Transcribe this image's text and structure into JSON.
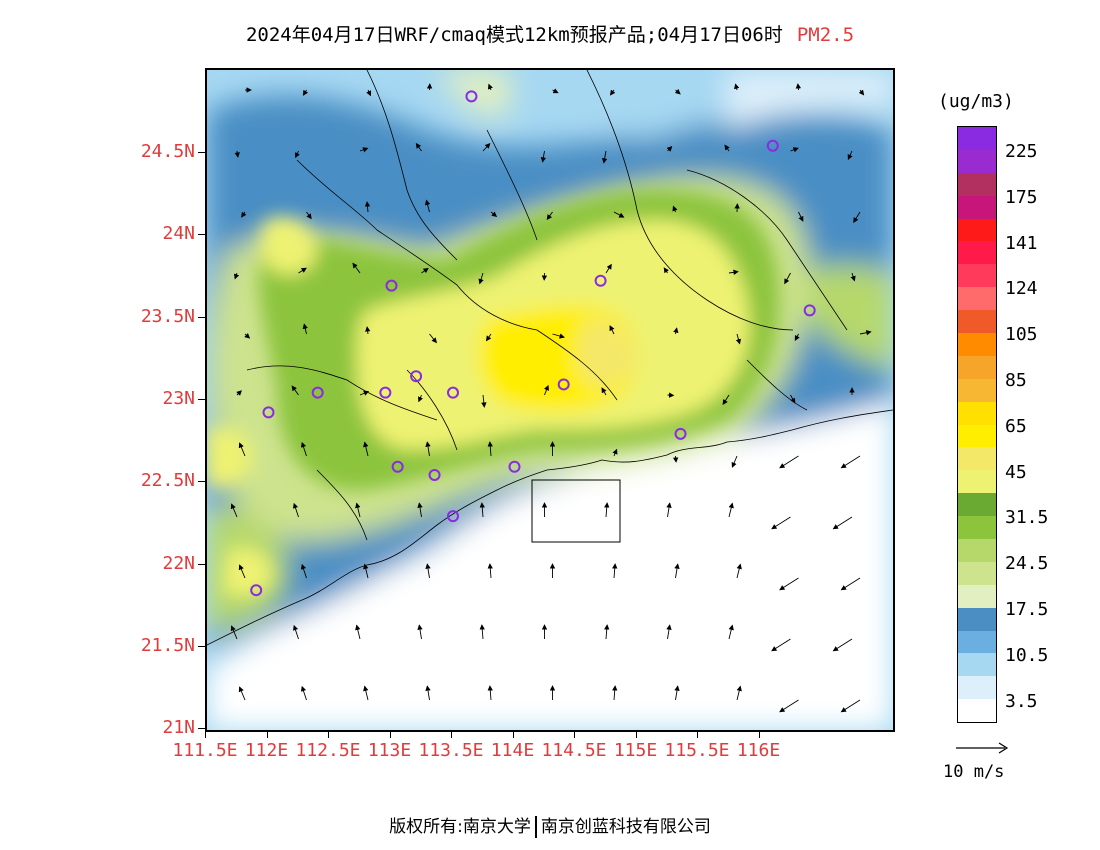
{
  "title": {
    "main": "2024年04月17日WRF/cmaq模式12km预报产品;04月17日06时",
    "variable": "PM2.5"
  },
  "lat_labels": [
    "24.5N",
    "24N",
    "23.5N",
    "23N",
    "22.5N",
    "22N",
    "21.5N",
    "21N"
  ],
  "lon_labels": [
    "111.5E",
    "112E",
    "112.5E",
    "113E",
    "113.5E",
    "114E",
    "114.5E",
    "115E",
    "115.5E",
    "116E"
  ],
  "legend": {
    "unit": "(ug/m3)",
    "labels": [
      "225",
      "175",
      "141",
      "124",
      "105",
      "85",
      "65",
      "45",
      "31.5",
      "24.5",
      "17.5",
      "10.5",
      "3.5"
    ],
    "colors": [
      "#8a2be2",
      "#9a2bd0",
      "#b23060",
      "#c8157a",
      "#ff1a1a",
      "#ff1a4a",
      "#ff3a5a",
      "#ff6a6a",
      "#f05a28",
      "#ff8c00",
      "#f7a52a",
      "#f7b733",
      "#ffe000",
      "#ffee00",
      "#f4e868",
      "#eef272",
      "#6aaa32",
      "#8cc43c",
      "#b6d86a",
      "#cde38e",
      "#e2efc0",
      "#4a8ec4",
      "#6aafe0",
      "#a6d8f2",
      "#ddeffa",
      "#ffffff"
    ]
  },
  "wind_reference": {
    "label": "10 m/s"
  },
  "footer": {
    "left": "版权所有:南京大学",
    "right": "南京创蓝科技有限公司"
  },
  "stations": [
    {
      "lon": 113.65,
      "lat": 24.85
    },
    {
      "lon": 116.1,
      "lat": 24.55
    },
    {
      "lon": 113.0,
      "lat": 23.7
    },
    {
      "lon": 114.7,
      "lat": 23.73
    },
    {
      "lon": 116.4,
      "lat": 23.55
    },
    {
      "lon": 112.4,
      "lat": 23.05
    },
    {
      "lon": 112.95,
      "lat": 23.05
    },
    {
      "lon": 113.2,
      "lat": 23.15
    },
    {
      "lon": 113.5,
      "lat": 23.05
    },
    {
      "lon": 114.4,
      "lat": 23.1
    },
    {
      "lon": 112.0,
      "lat": 22.93
    },
    {
      "lon": 115.35,
      "lat": 22.8
    },
    {
      "lon": 113.05,
      "lat": 22.6
    },
    {
      "lon": 113.35,
      "lat": 22.55
    },
    {
      "lon": 114.0,
      "lat": 22.6
    },
    {
      "lon": 113.5,
      "lat": 22.3
    },
    {
      "lon": 111.9,
      "lat": 21.85
    }
  ]
}
